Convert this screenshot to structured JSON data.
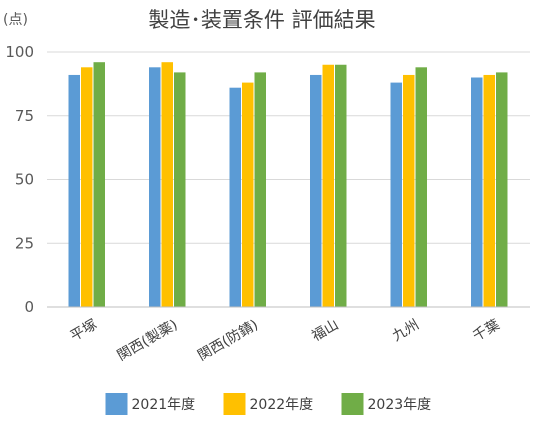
{
  "chart_data": {
    "type": "bar",
    "title": "製造･装置条件 評価結果",
    "unit_label": "(点)",
    "categories": [
      "平塚",
      "関西(製薬)",
      "関西(防錆)",
      "福山",
      "九州",
      "千葉"
    ],
    "series": [
      {
        "name": "2021年度",
        "color": "#5b9bd5",
        "values": [
          91,
          94,
          86,
          91,
          88,
          90
        ]
      },
      {
        "name": "2022年度",
        "color": "#ffc000",
        "values": [
          94,
          96,
          88,
          95,
          91,
          91
        ]
      },
      {
        "name": "2023年度",
        "color": "#70ad47",
        "values": [
          96,
          92,
          92,
          95,
          94,
          92
        ]
      }
    ],
    "yticks": [
      0,
      25,
      50,
      75,
      100
    ],
    "ylim": [
      0,
      100
    ],
    "grid": true,
    "legend_position": "bottom"
  }
}
